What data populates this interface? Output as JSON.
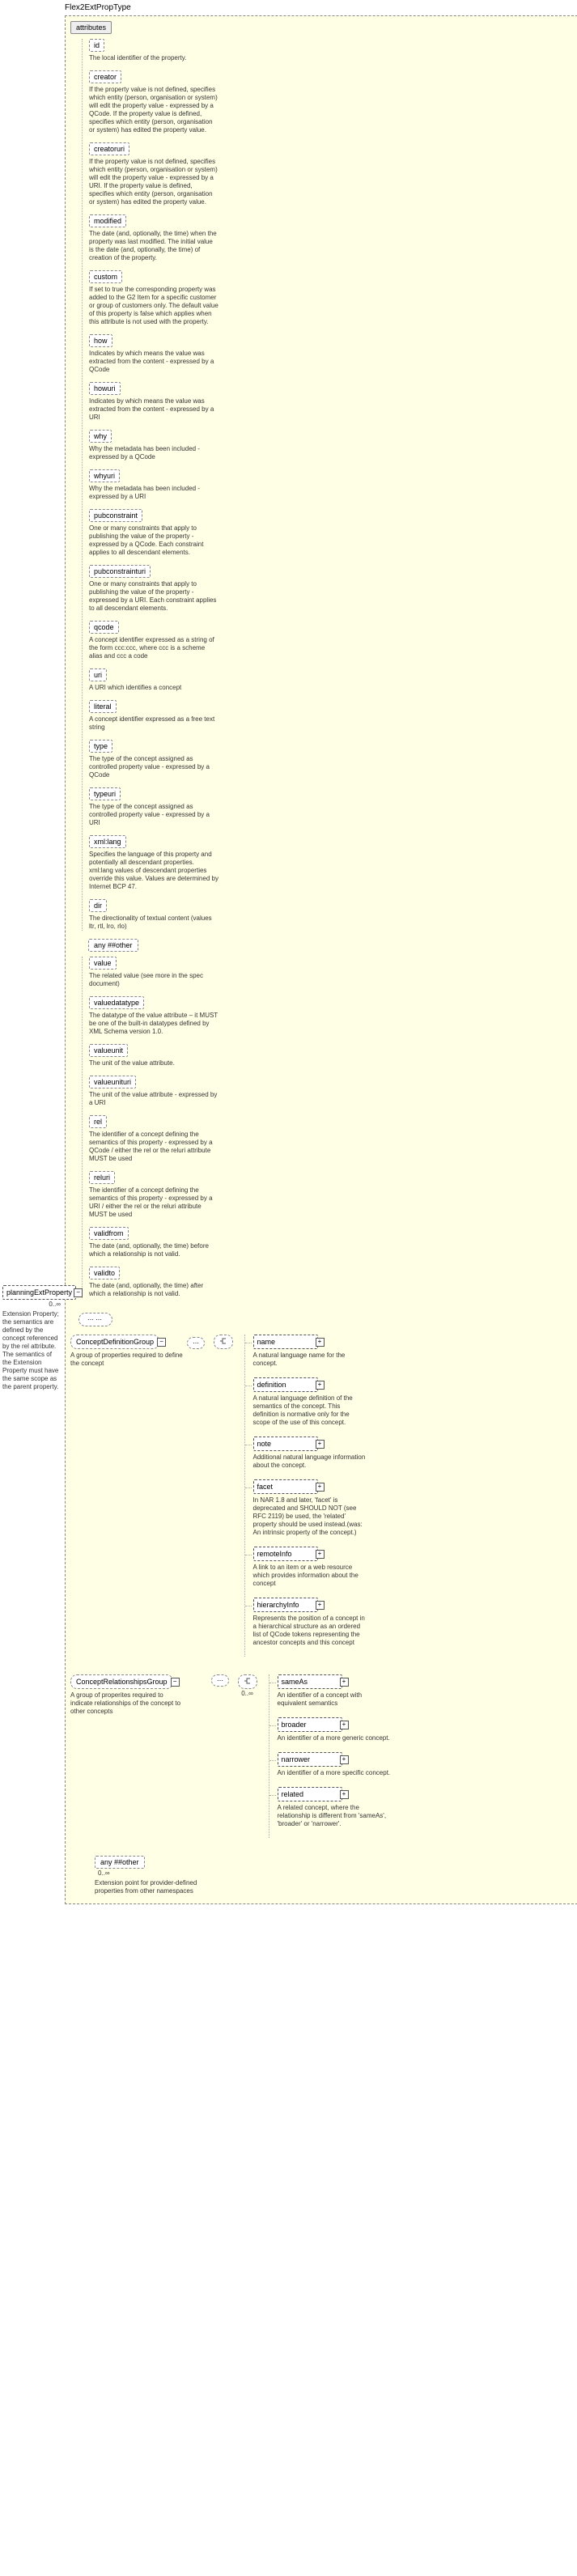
{
  "root": {
    "title": "Flex2ExtPropType",
    "attributes_label": "attributes"
  },
  "left_element": {
    "name": "planningExtProperty",
    "occurs": "0..∞",
    "desc": "Extension Property; the semantics are defined by the concept referenced by the rel attribute. The semantics of the Extension Property must have the same scope as the parent property."
  },
  "attributes": [
    {
      "name": "id",
      "desc": "The local identifier of the property."
    },
    {
      "name": "creator",
      "desc": "If the property value is not defined, specifies which entity (person, organisation or system) will edit the property value - expressed by a QCode. If the property value is defined, specifies which entity (person, organisation or system) has edited the property value."
    },
    {
      "name": "creatoruri",
      "desc": "If the property value is not defined, specifies which entity (person, organisation or system) will edit the property value - expressed by a URI. If the property value is defined, specifies which entity (person, organisation or system) has edited the property value."
    },
    {
      "name": "modified",
      "desc": "The date (and, optionally, the time) when the property was last modified. The initial value is the date (and, optionally, the time) of creation of the property."
    },
    {
      "name": "custom",
      "desc": "If set to true the corresponding property was added to the G2 Item for a specific customer or group of customers only. The default value of this property is false which applies when this attribute is not used with the property."
    },
    {
      "name": "how",
      "desc": "Indicates by which means the value was extracted from the content - expressed by a QCode"
    },
    {
      "name": "howuri",
      "desc": "Indicates by which means the value was extracted from the content - expressed by a URI"
    },
    {
      "name": "why",
      "desc": "Why the metadata has been included - expressed by a QCode"
    },
    {
      "name": "whyuri",
      "desc": "Why the metadata has been included - expressed by a URI"
    },
    {
      "name": "pubconstraint",
      "desc": "One or many constraints that apply to publishing the value of the property - expressed by a QCode. Each constraint applies to all descendant elements."
    },
    {
      "name": "pubconstrainturi",
      "desc": "One or many constraints that apply to publishing the value of the property - expressed by a URI. Each constraint applies to all descendant elements."
    },
    {
      "name": "qcode",
      "desc": "A concept identifier expressed as a string of the form ccc:ccc, where ccc is a scheme alias and ccc a code"
    },
    {
      "name": "uri",
      "desc": "A URI which identifies a concept"
    },
    {
      "name": "literal",
      "desc": "A concept identifier expressed as a free text string"
    },
    {
      "name": "type",
      "desc": "The type of the concept assigned as controlled property value - expressed by a QCode"
    },
    {
      "name": "typeuri",
      "desc": "The type of the concept assigned as controlled property value - expressed by a URI"
    },
    {
      "name": "xml:lang",
      "desc": "Specifies the language of this property and potentially all descendant properties. xml:lang values of descendant properties override this value. Values are determined by Internet BCP 47."
    },
    {
      "name": "dir",
      "desc": "The directionality of textual content (values ltr, rtl, lro, rlo)"
    }
  ],
  "any_attr": {
    "label": "any ##other"
  },
  "lower_attributes": [
    {
      "name": "value",
      "desc": "The related value (see more in the spec document)"
    },
    {
      "name": "valuedatatype",
      "desc": "The datatype of the value attribute – it MUST be one of the built-in datatypes defined by XML Schema version 1.0."
    },
    {
      "name": "valueunit",
      "desc": "The unit of the value attribute."
    },
    {
      "name": "valueunituri",
      "desc": "The unit of the value attribute - expressed by a URI"
    },
    {
      "name": "rel",
      "desc": "The identifier of a concept defining the semantics of this property - expressed by a QCode / either the rel or the reluri attribute MUST be used"
    },
    {
      "name": "reluri",
      "desc": "The identifier of a concept defining the semantics of this property - expressed by a URI / either the rel or the reluri attribute MUST be used"
    },
    {
      "name": "validfrom",
      "desc": "The date (and, optionally, the time) before which a relationship is not valid."
    },
    {
      "name": "validto",
      "desc": "The date (and, optionally, the time) after which a relationship is not valid."
    }
  ],
  "cdg": {
    "name": "ConceptDefinitionGroup",
    "desc": "A group of properties required to define the concept",
    "children": [
      {
        "name": "name",
        "desc": "A natural language name for the concept."
      },
      {
        "name": "definition",
        "desc": "A natural language definition of the semantics of the concept. This definition is normative only for the scope of the use of this concept."
      },
      {
        "name": "note",
        "desc": "Additional natural language information about the concept."
      },
      {
        "name": "facet",
        "desc": "In NAR 1.8 and later, 'facet' is deprecated and SHOULD NOT (see RFC 2119) be used, the 'related' property should be used instead.(was: An intrinsic property of the concept.)"
      },
      {
        "name": "remoteInfo",
        "desc": "A link to an item or a web resource which provides information about the concept"
      },
      {
        "name": "hierarchyInfo",
        "desc": "Represents the position of a concept in a hierarchical structure as an ordered list of QCode tokens representing the ancestor concepts and this concept"
      }
    ]
  },
  "crg": {
    "name": "ConceptRelationshipsGroup",
    "desc": "A group of properites required to indicate relationships of the concept to other concepts",
    "seq_occurs": "0..∞",
    "children": [
      {
        "name": "sameAs",
        "desc": "An identifier of a concept with equivalent semantics"
      },
      {
        "name": "broader",
        "desc": "An identifier of a more generic concept."
      },
      {
        "name": "narrower",
        "desc": "An identifier of a more specific concept."
      },
      {
        "name": "related",
        "desc": "A related concept, where the relationship is different from 'sameAs', 'broader' or 'narrower'."
      }
    ]
  },
  "bottom_any": {
    "label": "any ##other",
    "occurs": "0..∞",
    "desc": "Extension point for provider-defined properties from other namespaces"
  }
}
